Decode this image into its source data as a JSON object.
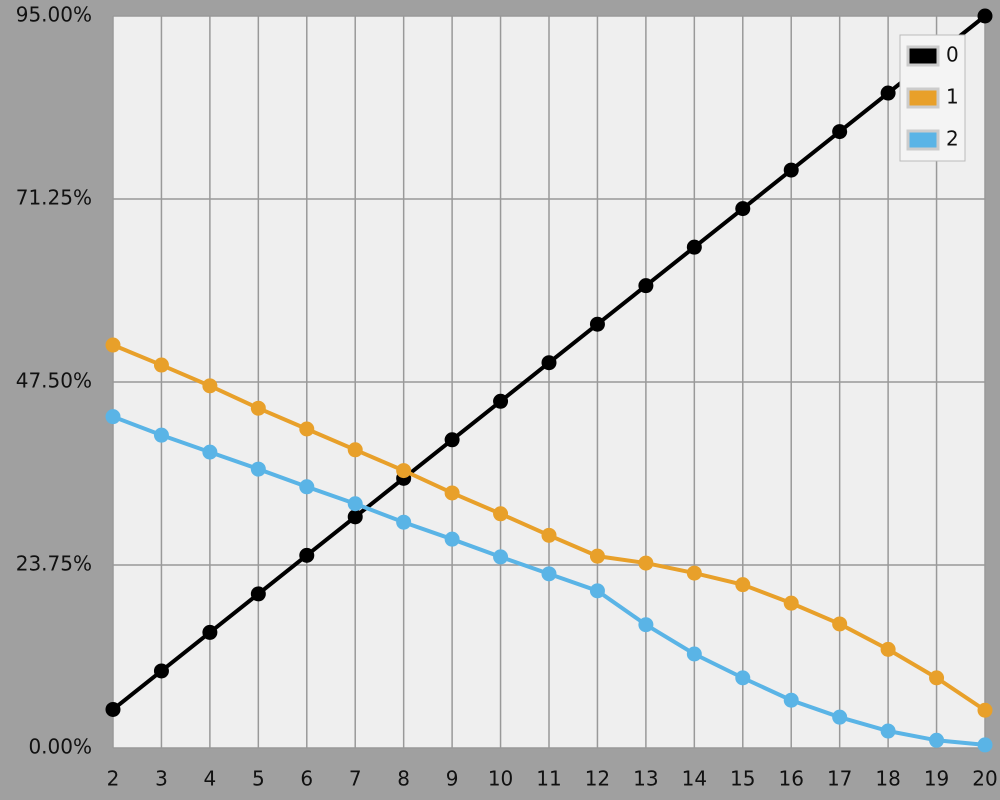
{
  "chart_data": {
    "type": "line",
    "x": [
      2,
      3,
      4,
      5,
      6,
      7,
      8,
      9,
      10,
      11,
      12,
      13,
      14,
      15,
      16,
      17,
      18,
      19,
      20
    ],
    "series": [
      {
        "name": "0",
        "color": "#000000",
        "values": [
          5,
          10,
          15,
          20,
          25,
          30,
          35,
          40,
          45,
          50,
          55,
          60,
          65,
          70,
          75,
          80,
          85,
          90,
          95
        ]
      },
      {
        "name": "1",
        "color": "#e8a02a",
        "values": [
          52.3,
          49.7,
          47.0,
          44.1,
          41.4,
          38.7,
          36.0,
          33.1,
          30.4,
          27.6,
          24.9,
          24.0,
          22.7,
          21.2,
          18.8,
          16.1,
          12.8,
          9.1,
          4.9
        ]
      },
      {
        "name": "2",
        "color": "#5ab4e6",
        "values": [
          43.0,
          40.6,
          38.4,
          36.2,
          33.9,
          31.7,
          29.3,
          27.1,
          24.8,
          22.6,
          20.4,
          16.0,
          12.2,
          9.1,
          6.2,
          4.0,
          2.2,
          1.0,
          0.4
        ]
      }
    ],
    "xlim": [
      2,
      20
    ],
    "xticks": [
      2,
      3,
      4,
      5,
      6,
      7,
      8,
      9,
      10,
      11,
      12,
      13,
      14,
      15,
      16,
      17,
      18,
      19,
      20
    ],
    "ylim": [
      0,
      95
    ],
    "yticks": [
      {
        "value": 0,
        "label": "0.00%"
      },
      {
        "value": 23.75,
        "label": "23.75%"
      },
      {
        "value": 47.5,
        "label": "47.50%"
      },
      {
        "value": 71.25,
        "label": "71.25%"
      },
      {
        "value": 95,
        "label": "95.00%"
      }
    ],
    "grid": true,
    "legend": "top-right"
  }
}
